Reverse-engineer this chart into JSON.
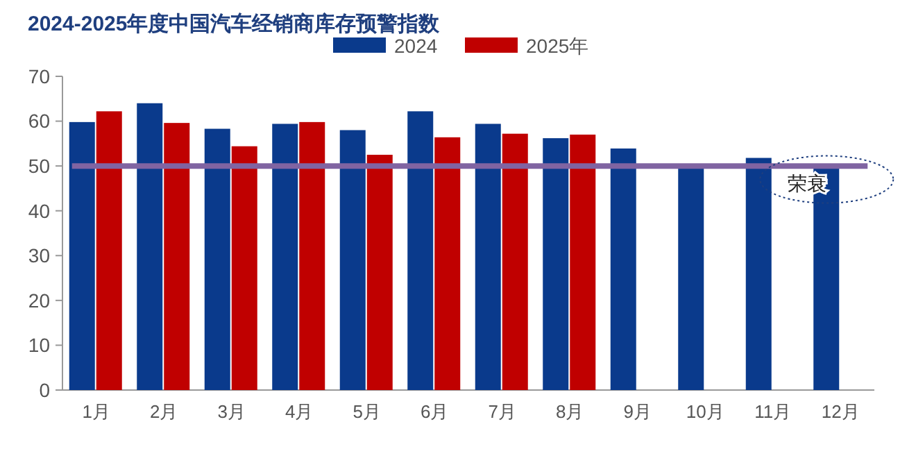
{
  "chart_data": {
    "type": "bar",
    "title": "2024-2025年度中国汽车经销商库存预警指数",
    "categories": [
      "1月",
      "2月",
      "3月",
      "4月",
      "5月",
      "6月",
      "7月",
      "8月",
      "9月",
      "10月",
      "11月",
      "12月"
    ],
    "series": [
      {
        "name": "2024",
        "color": "#0a3a8c",
        "values": [
          59.8,
          64,
          58.3,
          59.4,
          58,
          62.2,
          59.4,
          56.2,
          53.9,
          50.2,
          51.8,
          49.7
        ]
      },
      {
        "name": "2025年",
        "color": "#c00000",
        "values": [
          62.2,
          59.6,
          54.4,
          59.8,
          52.5,
          56.4,
          57.2,
          57,
          null,
          null,
          null,
          null
        ]
      }
    ],
    "ylim": [
      0,
      70
    ],
    "yticks": [
      0,
      10,
      20,
      30,
      40,
      50,
      60,
      70
    ],
    "grid": false,
    "legend": "top",
    "ref_lines": [
      {
        "axis": "y",
        "value": 50,
        "color": "#8064a2"
      }
    ],
    "annotations": [
      {
        "text": "荣衰",
        "x": "12月",
        "y": 47
      }
    ]
  }
}
